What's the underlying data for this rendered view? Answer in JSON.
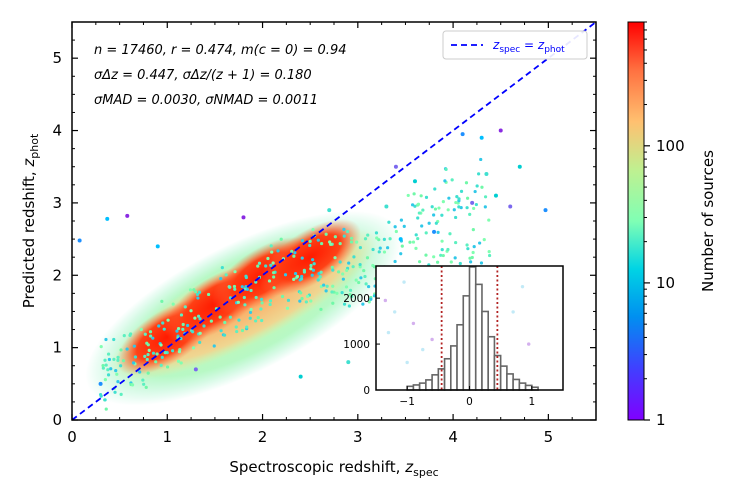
{
  "chart_data": [
    {
      "type": "scatter",
      "subtype": "density-colored scatter",
      "xlabel": "Spectroscopic redshift, z_spec",
      "xlabel_text": "Spectroscopic redshift,",
      "xlabel_var": "z",
      "xlabel_sub": "spec",
      "ylabel": "Predicted redshift, z_phot",
      "ylabel_text": "Predicted redshift,",
      "ylabel_var": "z",
      "ylabel_sub": "phot",
      "xlim": [
        0,
        5.5
      ],
      "ylim": [
        0,
        5.5
      ],
      "xticks": [
        "0",
        "1",
        "2",
        "3",
        "4",
        "5"
      ],
      "yticks": [
        "0",
        "1",
        "2",
        "3",
        "4",
        "5"
      ],
      "stats": [
        "n = 17460, r = 0.474, m(c = 0) = 0.94",
        "σΔz = 0.447, σΔz/(z + 1) = 0.180",
        "σMAD = 0.0030, σNMAD = 0.0011"
      ],
      "legend": {
        "label": "z_spec = z_phot",
        "lhs": "z",
        "lhs_sub": "spec",
        "eq": " = ",
        "rhs": "z",
        "rhs_sub": "phot",
        "position": "top-right",
        "line_color": "#0000ff"
      },
      "identity_line": {
        "from": [
          0,
          0
        ],
        "to": [
          5.5,
          5.5
        ],
        "style": "dashed",
        "color": "#0000ff"
      },
      "density_core": [
        {
          "x": 0.6,
          "y": 0.8
        },
        {
          "x": 1.0,
          "y": 1.15
        },
        {
          "x": 1.5,
          "y": 1.6
        },
        {
          "x": 2.0,
          "y": 2.0
        },
        {
          "x": 2.5,
          "y": 2.25
        },
        {
          "x": 3.0,
          "y": 2.4
        }
      ],
      "outliers": [
        {
          "x": 0.08,
          "y": 2.48
        },
        {
          "x": 0.37,
          "y": 2.78
        },
        {
          "x": 0.58,
          "y": 2.82
        },
        {
          "x": 3.3,
          "y": 2.95
        },
        {
          "x": 3.6,
          "y": 3.3
        },
        {
          "x": 3.4,
          "y": 3.5
        },
        {
          "x": 4.1,
          "y": 3.95
        },
        {
          "x": 4.3,
          "y": 3.9
        },
        {
          "x": 4.5,
          "y": 4.0
        },
        {
          "x": 4.35,
          "y": 3.4
        },
        {
          "x": 4.45,
          "y": 3.1
        },
        {
          "x": 4.2,
          "y": 3.0
        },
        {
          "x": 3.8,
          "y": 2.6
        },
        {
          "x": 3.45,
          "y": 2.5
        },
        {
          "x": 3.9,
          "y": 2.1
        },
        {
          "x": 2.9,
          "y": 0.8
        },
        {
          "x": 2.4,
          "y": 0.6
        },
        {
          "x": 1.3,
          "y": 0.7
        },
        {
          "x": 0.3,
          "y": 0.5
        },
        {
          "x": 0.9,
          "y": 2.4
        },
        {
          "x": 1.8,
          "y": 2.8
        },
        {
          "x": 2.7,
          "y": 2.9
        },
        {
          "x": 4.7,
          "y": 3.5
        },
        {
          "x": 4.6,
          "y": 2.95
        },
        {
          "x": 4.97,
          "y": 2.9
        },
        {
          "x": 3.3,
          "y": 0.93
        },
        {
          "x": 4.1,
          "y": 1.85
        },
        {
          "x": 3.6,
          "y": 1.7
        }
      ]
    },
    {
      "type": "colorbar",
      "label": "Number of sources",
      "scale": "log",
      "range": [
        1,
        800
      ],
      "ticks": [
        "1",
        "10",
        "100"
      ],
      "colormap": "rainbow"
    },
    {
      "type": "bar",
      "subtype": "inset histogram of Δz",
      "xlim": [
        -1.5,
        1.5
      ],
      "ylim": [
        0,
        2700
      ],
      "xticks": [
        "−1",
        "0",
        "1"
      ],
      "yticks": [
        "0",
        "1000",
        "2000"
      ],
      "bin_width": 0.1,
      "bin_starts": [
        -1.0,
        -0.9,
        -0.8,
        -0.7,
        -0.6,
        -0.5,
        -0.4,
        -0.3,
        -0.2,
        -0.1,
        0.0,
        0.1,
        0.2,
        0.3,
        0.4,
        0.5,
        0.6,
        0.7,
        0.8,
        0.9,
        1.0
      ],
      "values": [
        80,
        110,
        150,
        220,
        330,
        460,
        680,
        960,
        1420,
        2050,
        2680,
        2300,
        1710,
        1160,
        750,
        520,
        350,
        230,
        150,
        100,
        60
      ],
      "vlines": [
        -0.447,
        0.447
      ],
      "vline_color": "#b22222"
    }
  ]
}
